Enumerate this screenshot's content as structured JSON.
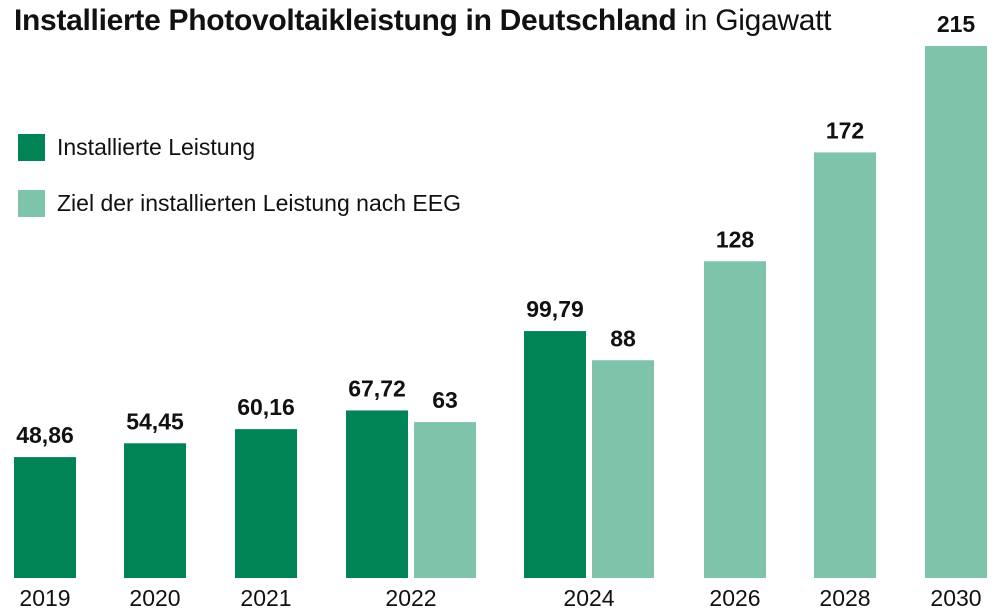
{
  "chart_data": {
    "type": "bar",
    "title": "Installierte Photovoltaikleistung in Deutschland",
    "subtitle": "in Gigawatt",
    "categories": [
      "2019",
      "2020",
      "2021",
      "2022",
      "2024",
      "2026",
      "2028",
      "2030"
    ],
    "series": [
      {
        "name": "Installierte Leistung",
        "color": "#008455",
        "values": [
          48.86,
          54.45,
          60.16,
          67.72,
          99.79,
          null,
          null,
          null
        ],
        "labels": [
          "48,86",
          "54,45",
          "60,16",
          "67,72",
          "99,79",
          "",
          "",
          ""
        ]
      },
      {
        "name": "Ziel der installierten Leistung nach EEG",
        "color": "#7dc4aa",
        "values": [
          null,
          null,
          null,
          63,
          88,
          128,
          172,
          215
        ],
        "labels": [
          "",
          "",
          "",
          "63",
          "88",
          "128",
          "172",
          "215"
        ]
      }
    ],
    "ylim": [
      0,
      215
    ],
    "grid": false,
    "legend_position": "top-left"
  }
}
